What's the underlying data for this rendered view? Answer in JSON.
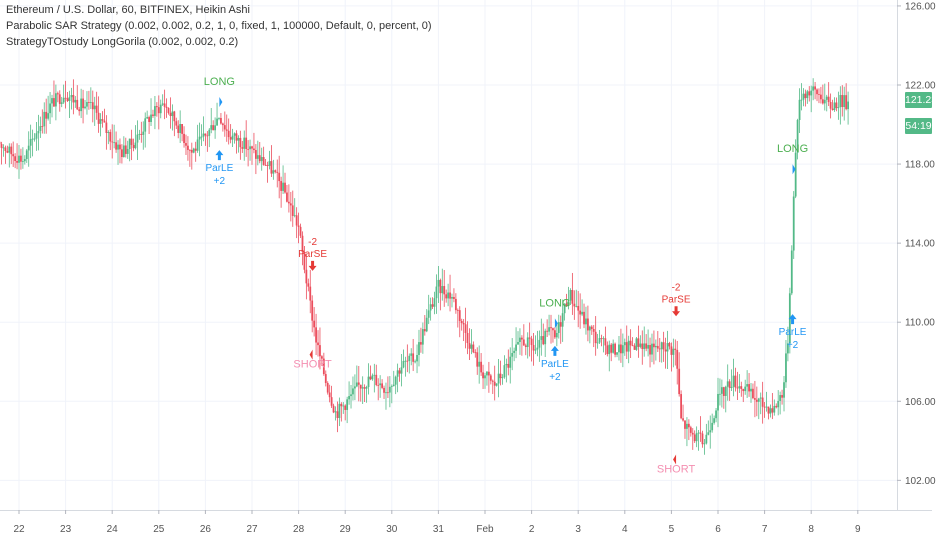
{
  "header": {
    "symbol_line": "Ethereum / U.S. Dollar, 60, BITFINEX, Heikin Ashi",
    "strategy_line": "Parabolic SAR Strategy (0.002, 0.002, 0.2, 1, 0, fixed, 1, 100000, Default, 0, percent, 0)",
    "study_line": "StrategyTOstudy LongGorila (0.002, 0.002, 0.2)"
  },
  "badges": {
    "last_price": "121.23",
    "countdown": "54:19"
  },
  "colors": {
    "up": "#53b987",
    "down": "#eb4d5c",
    "long_signal": "#4caf50",
    "short_signal": "#f48fb1",
    "parle": "#2196f3",
    "parse": "#e53935"
  },
  "chart_data": {
    "type": "candlestick",
    "style": "Heikin Ashi",
    "timeframe": "60",
    "exchange": "BITFINEX",
    "x_tick_labels": [
      "22",
      "23",
      "24",
      "25",
      "26",
      "27",
      "28",
      "29",
      "30",
      "31",
      "Feb",
      "2",
      "3",
      "4",
      "5",
      "6",
      "7",
      "8",
      "9"
    ],
    "y_tick_labels": [
      "102.00",
      "106.00",
      "110.00",
      "114.00",
      "118.00",
      "122.00",
      "126.00"
    ],
    "ylim": [
      100.5,
      126.3
    ],
    "grid": true,
    "price_path": [
      {
        "day": 21.5,
        "price": 119.3
      },
      {
        "day": 21.8,
        "price": 118.6
      },
      {
        "day": 22.1,
        "price": 118.2
      },
      {
        "day": 22.4,
        "price": 119.8
      },
      {
        "day": 22.7,
        "price": 121.1
      },
      {
        "day": 23.0,
        "price": 121.6
      },
      {
        "day": 23.3,
        "price": 121.0
      },
      {
        "day": 23.6,
        "price": 120.8
      },
      {
        "day": 23.9,
        "price": 119.6
      },
      {
        "day": 24.2,
        "price": 118.6
      },
      {
        "day": 24.5,
        "price": 119.2
      },
      {
        "day": 24.8,
        "price": 120.4
      },
      {
        "day": 25.1,
        "price": 121.1
      },
      {
        "day": 25.4,
        "price": 120.0
      },
      {
        "day": 25.7,
        "price": 118.6
      },
      {
        "day": 26.0,
        "price": 119.4
      },
      {
        "day": 26.3,
        "price": 120.5
      },
      {
        "day": 26.5,
        "price": 119.5
      },
      {
        "day": 26.8,
        "price": 119.1
      },
      {
        "day": 27.1,
        "price": 118.4
      },
      {
        "day": 27.4,
        "price": 117.8
      },
      {
        "day": 27.7,
        "price": 116.6
      },
      {
        "day": 28.0,
        "price": 114.8
      },
      {
        "day": 28.2,
        "price": 111.6
      },
      {
        "day": 28.4,
        "price": 108.8
      },
      {
        "day": 28.6,
        "price": 106.9
      },
      {
        "day": 28.8,
        "price": 105.4
      },
      {
        "day": 29.0,
        "price": 105.9
      },
      {
        "day": 29.3,
        "price": 106.8
      },
      {
        "day": 29.6,
        "price": 107.2
      },
      {
        "day": 29.9,
        "price": 106.6
      },
      {
        "day": 30.2,
        "price": 107.8
      },
      {
        "day": 30.5,
        "price": 108.2
      },
      {
        "day": 30.8,
        "price": 110.5
      },
      {
        "day": 31.0,
        "price": 111.8
      },
      {
        "day": 31.3,
        "price": 111.3
      },
      {
        "day": 31.6,
        "price": 109.4
      },
      {
        "day": 31.9,
        "price": 107.6
      },
      {
        "day": 32.2,
        "price": 106.8
      },
      {
        "day": 32.5,
        "price": 107.9
      },
      {
        "day": 32.8,
        "price": 109.1
      },
      {
        "day": 33.1,
        "price": 108.6
      },
      {
        "day": 33.4,
        "price": 109.6
      },
      {
        "day": 33.5,
        "price": 109.1
      },
      {
        "day": 33.8,
        "price": 111.5
      },
      {
        "day": 34.1,
        "price": 110.2
      },
      {
        "day": 34.4,
        "price": 109.1
      },
      {
        "day": 34.7,
        "price": 108.6
      },
      {
        "day": 35.0,
        "price": 108.7
      },
      {
        "day": 35.3,
        "price": 109.0
      },
      {
        "day": 35.6,
        "price": 108.6
      },
      {
        "day": 35.9,
        "price": 108.8
      },
      {
        "day": 36.1,
        "price": 108.5
      },
      {
        "day": 36.2,
        "price": 105.1
      },
      {
        "day": 36.4,
        "price": 104.4
      },
      {
        "day": 36.7,
        "price": 103.9
      },
      {
        "day": 37.0,
        "price": 106.1
      },
      {
        "day": 37.3,
        "price": 107.1
      },
      {
        "day": 37.6,
        "price": 106.6
      },
      {
        "day": 37.9,
        "price": 105.9
      },
      {
        "day": 38.2,
        "price": 105.6
      },
      {
        "day": 38.4,
        "price": 106.6
      },
      {
        "day": 38.5,
        "price": 109.2
      },
      {
        "day": 38.6,
        "price": 114.9
      },
      {
        "day": 38.7,
        "price": 120.4
      },
      {
        "day": 38.8,
        "price": 121.6
      },
      {
        "day": 39.0,
        "price": 121.7
      },
      {
        "day": 39.2,
        "price": 121.5
      },
      {
        "day": 39.4,
        "price": 120.9
      },
      {
        "day": 39.6,
        "price": 121.2
      },
      {
        "day": 39.8,
        "price": 121.1
      }
    ],
    "signals": [
      {
        "day": 26.3,
        "price": 122.0,
        "type": "strategy",
        "label": "LONG",
        "side": "long"
      },
      {
        "day": 26.3,
        "price": 118.2,
        "type": "order",
        "label": "ParLE",
        "qty": "+2",
        "side": "long"
      },
      {
        "day": 28.3,
        "price": 112.6,
        "type": "order",
        "label": "ParSE",
        "qty": "-2",
        "side": "short"
      },
      {
        "day": 28.3,
        "price": 107.7,
        "type": "strategy",
        "label": "SHORT",
        "side": "short"
      },
      {
        "day": 33.5,
        "price": 110.8,
        "type": "strategy",
        "label": "LONG",
        "side": "long"
      },
      {
        "day": 33.5,
        "price": 108.3,
        "type": "order",
        "label": "ParLE",
        "qty": "+2",
        "side": "long"
      },
      {
        "day": 36.1,
        "price": 110.3,
        "type": "order",
        "label": "ParSE",
        "qty": "-2",
        "side": "short"
      },
      {
        "day": 36.1,
        "price": 102.4,
        "type": "strategy",
        "label": "SHORT",
        "side": "short"
      },
      {
        "day": 38.6,
        "price": 118.6,
        "type": "strategy",
        "label": "LONG",
        "side": "long"
      },
      {
        "day": 38.6,
        "price": 109.9,
        "type": "order",
        "label": "ParLE",
        "qty": "+2",
        "side": "long"
      }
    ],
    "last_price": 121.23
  }
}
